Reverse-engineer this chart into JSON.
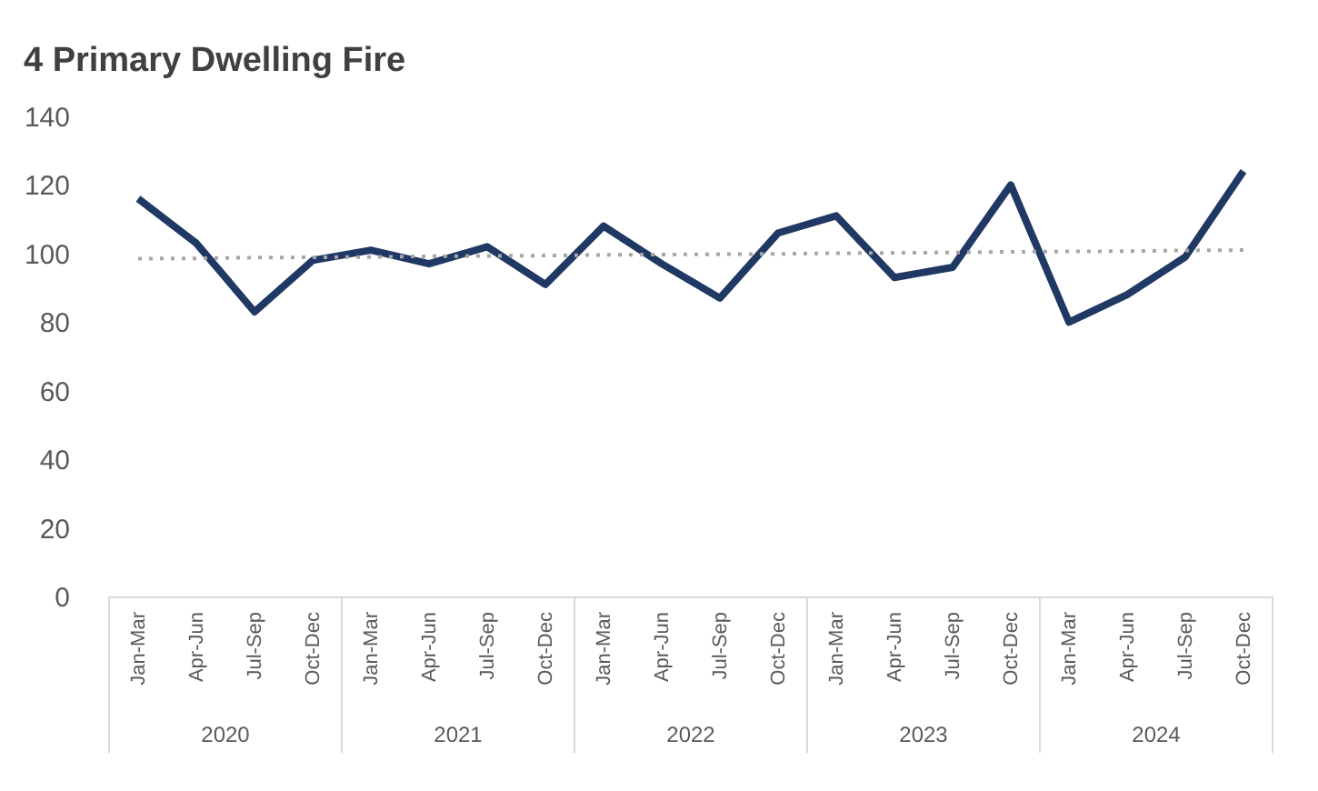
{
  "chart_data": {
    "type": "line",
    "title": "4 Primary Dwelling Fire",
    "categories": [
      "Jan-Mar",
      "Apr-Jun",
      "Jul-Sep",
      "Oct-Dec",
      "Jan-Mar",
      "Apr-Jun",
      "Jul-Sep",
      "Oct-Dec",
      "Jan-Mar",
      "Apr-Jun",
      "Jul-Sep",
      "Oct-Dec",
      "Jan-Mar",
      "Apr-Jun",
      "Jul-Sep",
      "Oct-Dec",
      "Jan-Mar",
      "Apr-Jun",
      "Jul-Sep",
      "Oct-Dec"
    ],
    "series": [
      {
        "color": "#203864",
        "line_style": "solid",
        "values": [
          116,
          103,
          83,
          98,
          101,
          97,
          102,
          91,
          108,
          97,
          87,
          106,
          111,
          93,
          96,
          120,
          80,
          88,
          99,
          124
        ]
      },
      {
        "type": "line",
        "color": "#a6a6a6",
        "line_style": "dotted",
        "values": [
          98.5,
          98.6,
          98.8,
          98.9,
          99.0,
          99.2,
          99.3,
          99.4,
          99.6,
          99.7,
          99.8,
          99.9,
          100.1,
          100.2,
          100.3,
          100.5,
          100.6,
          100.7,
          100.9,
          101.0
        ]
      }
    ],
    "annotations": [
      "2020",
      "2021",
      "2022",
      "2023",
      "2024"
    ],
    "ylim": [
      0,
      140
    ],
    "yticks": [
      0,
      20,
      40,
      60,
      80,
      100,
      120,
      140
    ],
    "grid": false,
    "marker": "none"
  }
}
